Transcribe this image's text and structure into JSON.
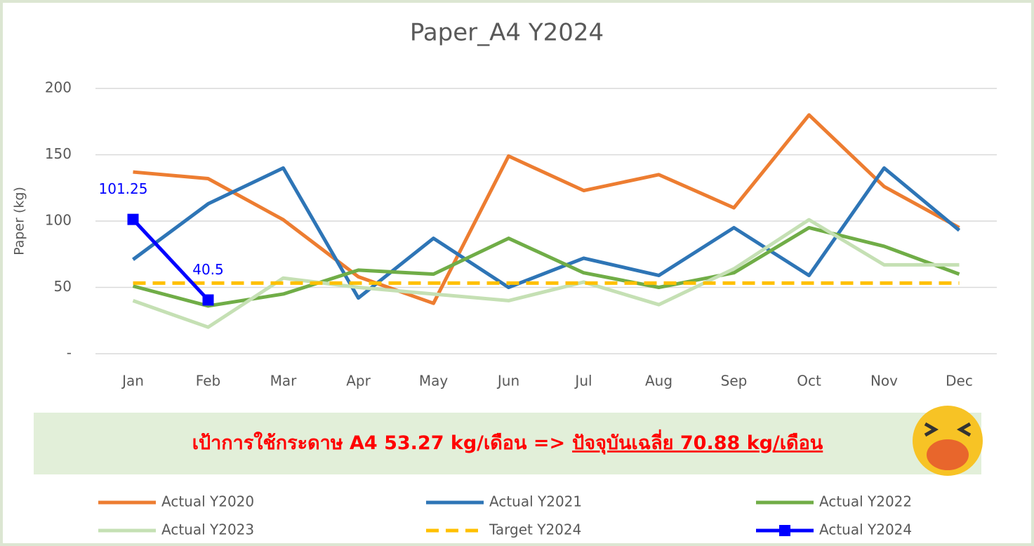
{
  "chart_data": {
    "type": "line",
    "title": "Paper_A4 Y2024",
    "y_label": "Paper (kg)",
    "categories": [
      "Jan",
      "Feb",
      "Mar",
      "Apr",
      "May",
      "Jun",
      "Jul",
      "Aug",
      "Sep",
      "Oct",
      "Nov",
      "Dec"
    ],
    "ylim": [
      0,
      200
    ],
    "yticks": [
      {
        "value": 0,
        "label": "-"
      },
      50,
      100,
      150,
      200
    ],
    "grid": true,
    "series": [
      {
        "name": "Actual Y2020",
        "color": "#ed7d31",
        "values": [
          137,
          132,
          101,
          58,
          38,
          149,
          123,
          135,
          110,
          180,
          126,
          95
        ]
      },
      {
        "name": "Actual Y2021",
        "color": "#2e75b6",
        "values": [
          71,
          113,
          140,
          42,
          87,
          50,
          72,
          59,
          95,
          59,
          140,
          93
        ]
      },
      {
        "name": "Actual Y2022",
        "color": "#70ad47",
        "values": [
          51,
          36,
          45,
          63,
          60,
          87,
          61,
          50,
          61,
          95,
          81,
          60
        ]
      },
      {
        "name": "Actual Y2023",
        "color": "#c5e0b4",
        "values": [
          40,
          20,
          57,
          50,
          45,
          40,
          54,
          37,
          64,
          101,
          67,
          67
        ]
      },
      {
        "name": "Target Y2024",
        "color": "#ffc000",
        "dash": true,
        "values": [
          53.27,
          53.27,
          53.27,
          53.27,
          53.27,
          53.27,
          53.27,
          53.27,
          53.27,
          53.27,
          53.27,
          53.27
        ]
      },
      {
        "name": "Actual Y2024",
        "color": "#0000ff",
        "marker": "square",
        "data_labels": true,
        "values": [
          101.25,
          40.5,
          null,
          null,
          null,
          null,
          null,
          null,
          null,
          null,
          null,
          null
        ]
      }
    ],
    "banner": {
      "text": "เป้าการใช้กระดาษ A4 53.27 kg/เดือน  =>",
      "highlight": "ปัจจุบันเฉลี่ย 70.88 kg/เดือน"
    }
  }
}
